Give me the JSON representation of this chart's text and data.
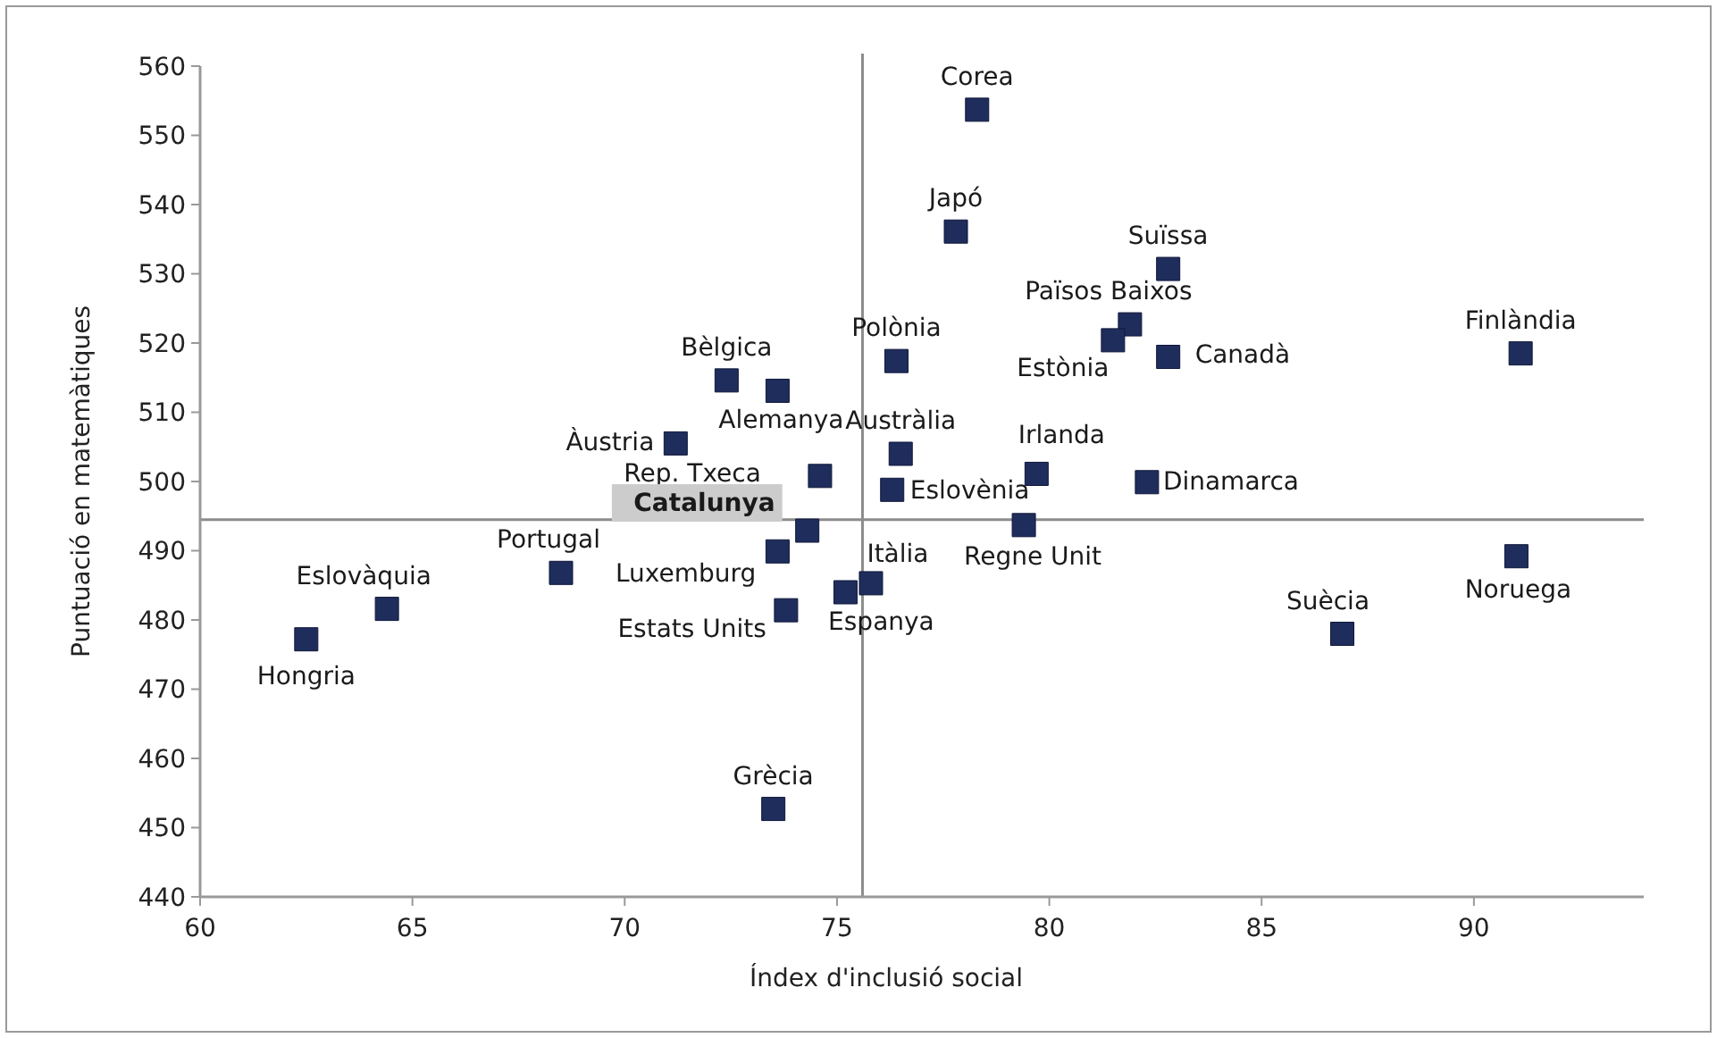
{
  "chart_data": {
    "type": "scatter",
    "xlabel": "Índex d'inclusió social",
    "ylabel": "Puntuació en matemàtiques",
    "xlim": [
      60,
      94
    ],
    "xticks": [
      60,
      65,
      70,
      75,
      80,
      85,
      90
    ],
    "ylim": [
      440,
      560
    ],
    "yticks": [
      440,
      450,
      460,
      470,
      480,
      490,
      500,
      510,
      520,
      530,
      540,
      550,
      560
    ],
    "grid": false,
    "marker": "square",
    "series": [
      {
        "color": "#1f2d5c",
        "x": [
          78.3,
          77.8,
          82.8,
          81.9,
          81.5,
          82.8,
          91.1,
          76.4,
          72.4,
          73.6,
          71.2,
          74.6,
          76.5,
          76.3,
          79.7,
          82.3,
          79.4,
          74.3,
          73.6,
          73.8,
          68.5,
          64.4,
          62.5,
          73.5,
          75.2,
          75.8,
          86.9,
          91.0
        ],
        "values": [
          553.7,
          536.1,
          530.7,
          522.7,
          520.4,
          518,
          518.5,
          517.4,
          514.6,
          513.1,
          505.5,
          500.8,
          504,
          498.8,
          501.1,
          499.9,
          493.7,
          492.9,
          489.9,
          481.4,
          486.8,
          481.6,
          477.2,
          452.7,
          484,
          485.3,
          478,
          489.2
        ]
      }
    ],
    "ref_lines": [
      {
        "axis": "x",
        "value": 75.6,
        "color": "#8c8c8c"
      },
      {
        "axis": "y",
        "value": 494.5,
        "color": "#8c8c8c"
      }
    ],
    "annotations": [
      {
        "text": "Corea",
        "x": 78.3,
        "y": 553.7
      },
      {
        "text": "Japó",
        "x": 77.8,
        "y": 536.1
      },
      {
        "text": "Suïssa",
        "x": 82.8,
        "y": 530.7
      },
      {
        "text": "Països Baixos",
        "x": 81.9,
        "y": 522.7
      },
      {
        "text": "Estònia",
        "x": 81.5,
        "y": 520.4
      },
      {
        "text": "Canadà",
        "x": 82.8,
        "y": 518
      },
      {
        "text": "Finlàndia",
        "x": 91.1,
        "y": 518.5
      },
      {
        "text": "Polònia",
        "x": 76.4,
        "y": 517.4
      },
      {
        "text": "Bèlgica",
        "x": 72.4,
        "y": 514.6
      },
      {
        "text": "Alemanya",
        "x": 73.6,
        "y": 513.1
      },
      {
        "text": "Àustria",
        "x": 71.2,
        "y": 505.5
      },
      {
        "text": "Rep. Txeca",
        "x": 74.6,
        "y": 500.8
      },
      {
        "text": "Austràlia",
        "x": 76.5,
        "y": 504
      },
      {
        "text": "Eslovènia",
        "x": 76.3,
        "y": 498.8
      },
      {
        "text": "Irlanda",
        "x": 79.7,
        "y": 501.1
      },
      {
        "text": "Dinamarca",
        "x": 82.3,
        "y": 499.9
      },
      {
        "text": "Regne Unit",
        "x": 79.4,
        "y": 493.7
      },
      {
        "text": "Catalunya",
        "x": 74.3,
        "y": 492.9
      },
      {
        "text": "Luxemburg",
        "x": 73.6,
        "y": 489.9
      },
      {
        "text": "Estats Units",
        "x": 73.8,
        "y": 481.4
      },
      {
        "text": "Portugal",
        "x": 68.5,
        "y": 486.8
      },
      {
        "text": "Eslovàquia",
        "x": 64.4,
        "y": 481.6
      },
      {
        "text": "Hongria",
        "x": 62.5,
        "y": 477.2
      },
      {
        "text": "Grècia",
        "x": 73.5,
        "y": 452.7
      },
      {
        "text": "Espanya",
        "x": 75.2,
        "y": 484
      },
      {
        "text": "Itàlia",
        "x": 75.8,
        "y": 485.3
      },
      {
        "text": "Suècia",
        "x": 86.9,
        "y": 478
      },
      {
        "text": "Noruega",
        "x": 91.0,
        "y": 489.2
      }
    ]
  }
}
